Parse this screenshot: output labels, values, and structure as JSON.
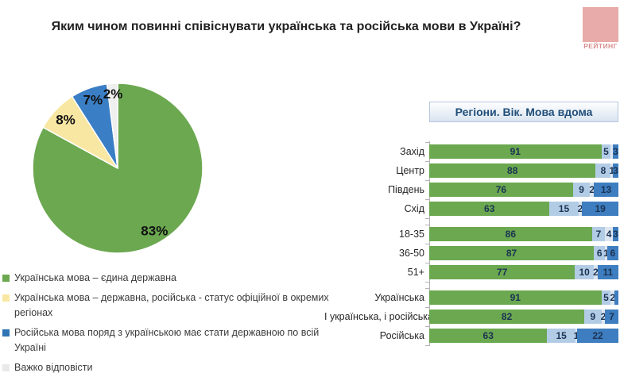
{
  "title": "Яким чином повинні співіснувати українська та російська мови в Україні?",
  "logo": {
    "text": "РЕЙТИНГ",
    "bg_color": "#e9aba9",
    "text_color": "#d98f8f"
  },
  "legend": {
    "items": [
      {
        "label": "Українська мова – єдина державна",
        "color": "#6ba84f"
      },
      {
        "label": "Українська мова – державна, російська - статус офіційної в окремих регіонах",
        "color": "#f8e7a2"
      },
      {
        "label": "Російська мова поряд з українською має стати державною по всій Україні",
        "color": "#2f74b5"
      },
      {
        "label": "Важко відповісти",
        "color": "#e9e9e9"
      }
    ]
  },
  "chart_data": [
    {
      "type": "pie",
      "values": [
        83,
        8,
        7,
        2
      ],
      "labels": [
        "83%",
        "8%",
        "7%",
        "2%"
      ],
      "categories": [
        "Українська мова – єдина державна",
        "Українська мова – державна, російська - статус офіційної в окремих регіонах",
        "Російська мова поряд з українською має стати державною по всій Україні",
        "Важко відповісти"
      ],
      "colors": [
        "#6ba84f",
        "#f8e7a2",
        "#3a7ec5",
        "#efefef"
      ],
      "start_angle_deg": 0,
      "direction": "clockwise"
    },
    {
      "type": "bar",
      "variant": "horizontal-stacked",
      "title": "Регіони. Вік. Мова вдома",
      "series_names": [
        "Українська мова – єдина державна",
        "Українська мова – державна, російська - статус офіційної в окремих регіонах",
        "Важко відповісти",
        "Російська мова поряд з українською має стати державною по всій Україні"
      ],
      "colors": [
        "#6ba84f",
        "#b3cce6",
        "#dde6f1",
        "#3e7dbf"
      ],
      "xlim": [
        0,
        100
      ],
      "groups": [
        {
          "name": "regions",
          "rows": [
            {
              "label": "Захід",
              "values": [
                91,
                5,
                1,
                3
              ],
              "labels": [
                "91",
                "5",
                "",
                "3"
              ]
            },
            {
              "label": "Центр",
              "values": [
                88,
                8,
                1,
                3
              ],
              "labels": [
                "88",
                "8",
                "1",
                "3"
              ]
            },
            {
              "label": "Південь",
              "values": [
                76,
                9,
                2,
                13
              ],
              "labels": [
                "76",
                "9",
                "2",
                "13"
              ]
            },
            {
              "label": "Схід",
              "values": [
                63,
                15,
                2,
                19
              ],
              "labels": [
                "63",
                "15",
                "2",
                "19"
              ]
            }
          ]
        },
        {
          "name": "age",
          "rows": [
            {
              "label": "18-35",
              "values": [
                86,
                7,
                4,
                3
              ],
              "labels": [
                "86",
                "7",
                "4",
                "3"
              ]
            },
            {
              "label": "36-50",
              "values": [
                87,
                6,
                1,
                6
              ],
              "labels": [
                "87",
                "6",
                "1",
                "6"
              ]
            },
            {
              "label": "51+",
              "values": [
                77,
                10,
                2,
                11
              ],
              "labels": [
                "77",
                "10",
                "2",
                "11"
              ]
            }
          ]
        },
        {
          "name": "language-at-home",
          "rows": [
            {
              "label": "Українська",
              "values": [
                91,
                5,
                2,
                2
              ],
              "labels": [
                "91",
                "5",
                "2",
                ""
              ]
            },
            {
              "label": "І українська, і російська",
              "values": [
                82,
                9,
                2,
                7
              ],
              "labels": [
                "82",
                "9",
                "2",
                "7"
              ]
            },
            {
              "label": "Російська",
              "values": [
                63,
                15,
                1,
                22
              ],
              "labels": [
                "63",
                "15",
                "1",
                "22"
              ]
            }
          ]
        }
      ]
    }
  ]
}
